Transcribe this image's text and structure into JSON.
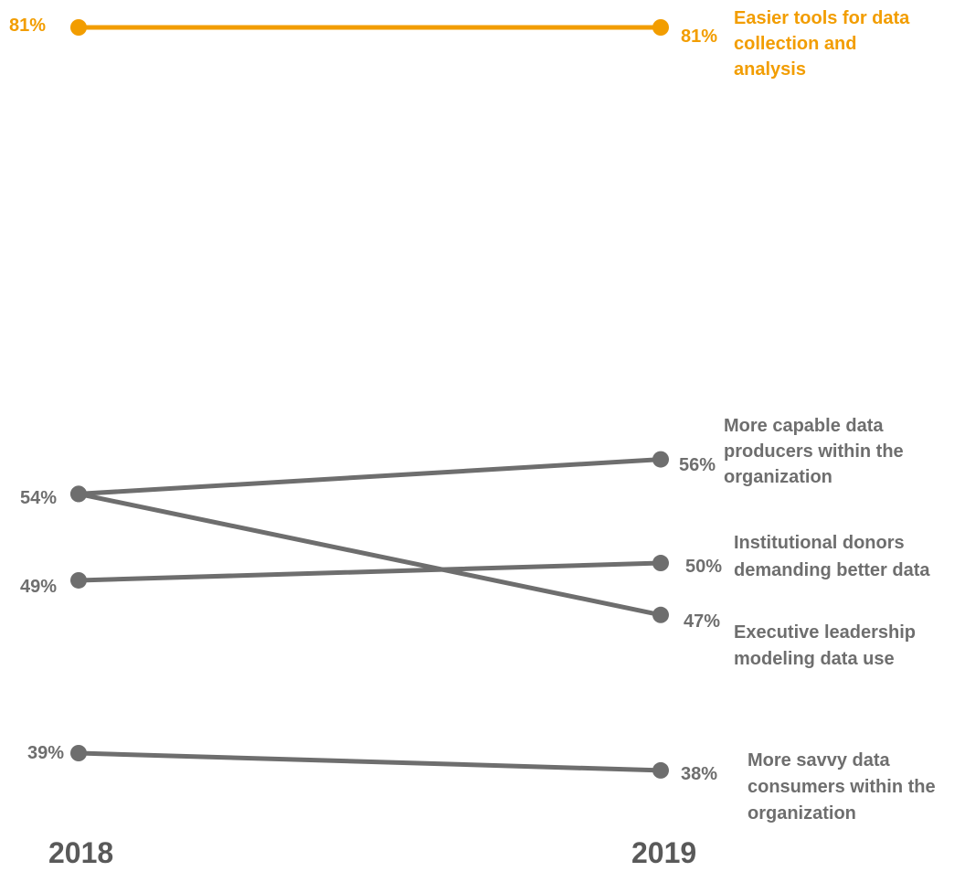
{
  "chart_data": {
    "type": "line",
    "subtype": "slope",
    "x": [
      "2018",
      "2019"
    ],
    "value_format": "percent",
    "grid": false,
    "colors": {
      "highlight": "#F29D00",
      "default": "#6E6E6E",
      "year_label": "#595959"
    },
    "series": [
      {
        "name": "Easier tools for data collection and analysis",
        "label_lines": [
          "Easier tools for data",
          "collection and",
          "analysis"
        ],
        "values": [
          81,
          81
        ],
        "highlight": true
      },
      {
        "name": "More capable data producers within the organization",
        "label_lines": [
          "More capable data",
          "producers within the",
          "organization"
        ],
        "values": [
          54,
          56
        ],
        "highlight": false
      },
      {
        "name": "Institutional donors demanding better data",
        "label_lines": [
          "Institutional donors",
          "demanding better data"
        ],
        "values": [
          49,
          50
        ],
        "highlight": false
      },
      {
        "name": "Executive leadership modeling data use",
        "label_lines": [
          "Executive leadership",
          "modeling data use"
        ],
        "values": [
          54,
          47
        ],
        "highlight": false
      },
      {
        "name": "More savvy data consumers within the organization",
        "label_lines": [
          "More savvy data",
          "consumers within the",
          "organization"
        ],
        "values": [
          39,
          38
        ],
        "highlight": false
      }
    ]
  }
}
